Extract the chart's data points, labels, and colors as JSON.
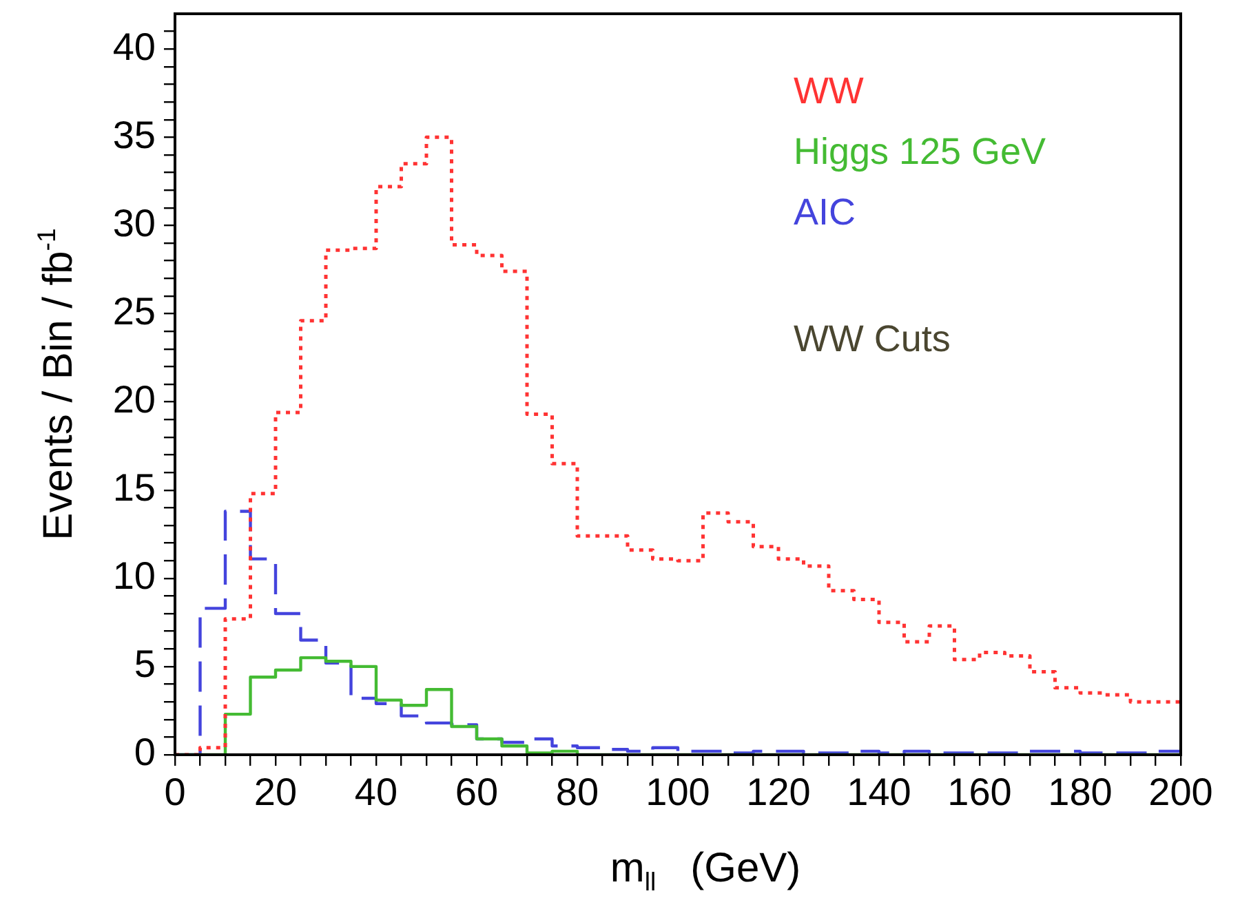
{
  "chart_data": {
    "type": "histogram",
    "xlabel": "m$_{ll}$   (GeV)",
    "ylabel": "Events / Bin / fb$^{-1}$",
    "bins": [
      0,
      5,
      10,
      15,
      20,
      25,
      30,
      35,
      40,
      45,
      50,
      55,
      60,
      65,
      70,
      75,
      80,
      85,
      90,
      95,
      100,
      105,
      110,
      115,
      120,
      125,
      130,
      135,
      140,
      145,
      150,
      155,
      160,
      165,
      170,
      175,
      180,
      185,
      190,
      195,
      200
    ],
    "series": [
      {
        "name": "WW",
        "color": "#ff3333",
        "line_style": "dotted",
        "values": [
          0,
          0.4,
          7.7,
          14.8,
          19.4,
          24.6,
          28.6,
          28.7,
          32.2,
          33.5,
          35.0,
          28.9,
          28.3,
          27.4,
          19.3,
          16.5,
          12.4,
          12.4,
          11.6,
          11.1,
          11.0,
          13.7,
          13.2,
          11.8,
          11.1,
          10.7,
          9.3,
          8.8,
          7.5,
          6.4,
          7.3,
          5.4,
          5.8,
          5.6,
          4.7,
          3.8,
          3.5,
          3.4,
          3.0,
          3.0
        ]
      },
      {
        "name": "Higgs 125 GeV",
        "color": "#44bb33",
        "line_style": "solid",
        "values": [
          0,
          0,
          2.3,
          4.4,
          4.8,
          5.5,
          5.3,
          5.0,
          3.1,
          2.8,
          3.7,
          1.6,
          0.9,
          0.5,
          0.1,
          0.2,
          0,
          0,
          0,
          0,
          0,
          0,
          0,
          0,
          0,
          0,
          0,
          0,
          0,
          0,
          0,
          0,
          0,
          0,
          0,
          0,
          0,
          0,
          0,
          0
        ]
      },
      {
        "name": "AIC",
        "color": "#4444dd",
        "line_style": "dashed",
        "values": [
          0,
          8.3,
          13.8,
          11.1,
          8.0,
          6.5,
          5.2,
          3.2,
          2.9,
          2.2,
          1.8,
          1.7,
          0.9,
          0.7,
          0.9,
          0.5,
          0.4,
          0.3,
          0.2,
          0.4,
          0.2,
          0.2,
          0.1,
          0.2,
          0.2,
          0.1,
          0.1,
          0.2,
          0.1,
          0.2,
          0.1,
          0.1,
          0.1,
          0.1,
          0.2,
          0.2,
          0.1,
          0.1,
          0.1,
          0.2
        ]
      }
    ],
    "legend": "top right",
    "annotations": [
      "WW Cuts"
    ],
    "xlim": [
      0,
      200
    ],
    "xticks": [
      0,
      {
        "value": 5,
        "label": null
      },
      {
        "value": 10,
        "label": null
      },
      {
        "value": 15,
        "label": null
      },
      20,
      {
        "value": 25,
        "label": null
      },
      {
        "value": 30,
        "label": null
      },
      {
        "value": 35,
        "label": null
      },
      40,
      {
        "value": 45,
        "label": null
      },
      {
        "value": 50,
        "label": null
      },
      {
        "value": 55,
        "label": null
      },
      60,
      {
        "value": 65,
        "label": null
      },
      {
        "value": 70,
        "label": null
      },
      {
        "value": 75,
        "label": null
      },
      80,
      {
        "value": 85,
        "label": null
      },
      {
        "value": 90,
        "label": null
      },
      {
        "value": 95,
        "label": null
      },
      100,
      {
        "value": 105,
        "label": null
      },
      {
        "value": 110,
        "label": null
      },
      {
        "value": 115,
        "label": null
      },
      120,
      {
        "value": 125,
        "label": null
      },
      {
        "value": 130,
        "label": null
      },
      {
        "value": 135,
        "label": null
      },
      140,
      {
        "value": 145,
        "label": null
      },
      {
        "value": 150,
        "label": null
      },
      {
        "value": 155,
        "label": null
      },
      160,
      {
        "value": 165,
        "label": null
      },
      {
        "value": 170,
        "label": null
      },
      {
        "value": 175,
        "label": null
      },
      180,
      {
        "value": 185,
        "label": null
      },
      {
        "value": 190,
        "label": null
      },
      {
        "value": 195,
        "label": null
      },
      200
    ],
    "ylim": [
      0,
      42
    ],
    "yticks": [
      0,
      {
        "value": 1,
        "label": null
      },
      {
        "value": 2,
        "label": null
      },
      {
        "value": 3,
        "label": null
      },
      {
        "value": 4,
        "label": null
      },
      5,
      {
        "value": 6,
        "label": null
      },
      {
        "value": 7,
        "label": null
      },
      {
        "value": 8,
        "label": null
      },
      {
        "value": 9,
        "label": null
      },
      10,
      {
        "value": 11,
        "label": null
      },
      {
        "value": 12,
        "label": null
      },
      {
        "value": 13,
        "label": null
      },
      {
        "value": 14,
        "label": null
      },
      15,
      {
        "value": 16,
        "label": null
      },
      {
        "value": 17,
        "label": null
      },
      {
        "value": 18,
        "label": null
      },
      {
        "value": 19,
        "label": null
      },
      20,
      {
        "value": 21,
        "label": null
      },
      {
        "value": 22,
        "label": null
      },
      {
        "value": 23,
        "label": null
      },
      {
        "value": 24,
        "label": null
      },
      25,
      {
        "value": 26,
        "label": null
      },
      {
        "value": 27,
        "label": null
      },
      {
        "value": 28,
        "label": null
      },
      {
        "value": 29,
        "label": null
      },
      30,
      {
        "value": 31,
        "label": null
      },
      {
        "value": 32,
        "label": null
      },
      {
        "value": 33,
        "label": null
      },
      {
        "value": 34,
        "label": null
      },
      35,
      {
        "value": 36,
        "label": null
      },
      {
        "value": 37,
        "label": null
      },
      {
        "value": 38,
        "label": null
      },
      {
        "value": 39,
        "label": null
      },
      40,
      {
        "value": 41,
        "label": null
      }
    ],
    "grid": false
  }
}
